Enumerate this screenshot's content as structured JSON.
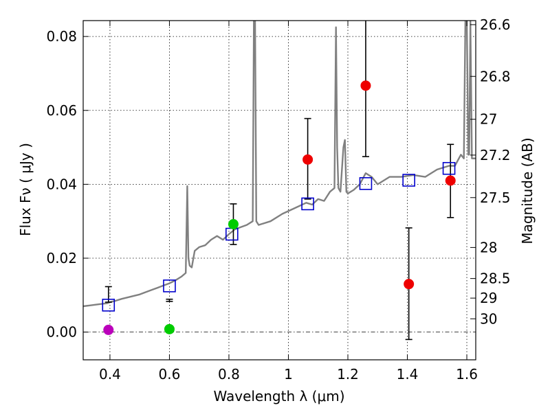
{
  "chart_data": {
    "type": "scatter",
    "xlabel": "Wavelength  λ (μm)",
    "ylabel": "Flux  Fν  ( μJy )",
    "ylabel_right": "Magnitude (AB)",
    "xlim": [
      0.31,
      1.63
    ],
    "ylim": [
      -0.0075,
      0.0843
    ],
    "x_ticks": [
      0.4,
      0.6,
      0.8,
      1.0,
      1.2,
      1.4,
      1.6
    ],
    "x_tick_labels": [
      "0.4",
      "0.6",
      "0.8",
      "1",
      "1.2",
      "1.4",
      "1.6"
    ],
    "y_ticks": [
      0.0,
      0.02,
      0.04,
      0.06,
      0.08
    ],
    "y_tick_labels": [
      "0.00",
      "0.02",
      "0.04",
      "0.06",
      "0.08"
    ],
    "right_ticks": [
      {
        "label": "26.6",
        "flux": 0.0832
      },
      {
        "label": "26.8",
        "flux": 0.0692
      },
      {
        "label": "27",
        "flux": 0.0576
      },
      {
        "label": "27.2",
        "flux": 0.0479
      },
      {
        "label": "27.5",
        "flux": 0.0364
      },
      {
        "label": "28",
        "flux": 0.0229
      },
      {
        "label": "28.5",
        "flux": 0.0145
      },
      {
        "label": "29",
        "flux": 0.0092
      },
      {
        "label": "30",
        "flux": 0.0036
      }
    ],
    "grid": true,
    "colors": {
      "magenta": "#bb00bb",
      "green": "#00cc00",
      "red": "#ee0000",
      "model": "#0000cc",
      "spectrum": "#808080"
    },
    "spectrum": {
      "name": "model spectrum",
      "x": [
        0.31,
        0.33,
        0.35,
        0.37,
        0.39,
        0.4,
        0.42,
        0.44,
        0.46,
        0.48,
        0.5,
        0.52,
        0.54,
        0.56,
        0.58,
        0.6,
        0.62,
        0.64,
        0.655,
        0.66,
        0.664,
        0.668,
        0.675,
        0.685,
        0.7,
        0.72,
        0.74,
        0.76,
        0.78,
        0.8,
        0.82,
        0.84,
        0.86,
        0.88,
        0.884,
        0.886,
        0.888,
        0.892,
        0.9,
        0.94,
        0.98,
        1.02,
        1.06,
        1.08,
        1.1,
        1.12,
        1.14,
        1.155,
        1.16,
        1.164,
        1.168,
        1.175,
        1.185,
        1.19,
        1.195,
        1.2,
        1.22,
        1.24,
        1.26,
        1.28,
        1.3,
        1.34,
        1.38,
        1.42,
        1.46,
        1.5,
        1.54,
        1.56,
        1.58,
        1.59,
        1.595,
        1.6,
        1.605,
        1.608,
        1.612,
        1.617,
        1.63
      ],
      "y": [
        0.007,
        0.0072,
        0.0074,
        0.0076,
        0.0078,
        0.0081,
        0.0085,
        0.009,
        0.0094,
        0.0098,
        0.0102,
        0.0108,
        0.0114,
        0.012,
        0.0126,
        0.0132,
        0.014,
        0.015,
        0.016,
        0.0395,
        0.02,
        0.018,
        0.0175,
        0.022,
        0.023,
        0.0235,
        0.025,
        0.026,
        0.025,
        0.0265,
        0.0278,
        0.0284,
        0.029,
        0.03,
        0.0843,
        0.0843,
        0.0843,
        0.03,
        0.029,
        0.03,
        0.032,
        0.0335,
        0.035,
        0.0345,
        0.036,
        0.0355,
        0.038,
        0.039,
        0.0825,
        0.05,
        0.039,
        0.038,
        0.05,
        0.052,
        0.038,
        0.0375,
        0.0385,
        0.04,
        0.043,
        0.042,
        0.04,
        0.042,
        0.042,
        0.0425,
        0.042,
        0.044,
        0.045,
        0.045,
        0.048,
        0.047,
        0.0843,
        0.0843,
        0.048,
        0.048,
        0.0843,
        0.047,
        0.047
      ]
    },
    "series": [
      {
        "name": "model photometry",
        "marker": "open-square",
        "color": "#0000cc",
        "points": [
          [
            0.395,
            0.0073
          ],
          [
            0.6,
            0.0125
          ],
          [
            0.81,
            0.0265
          ],
          [
            1.065,
            0.0347
          ],
          [
            1.26,
            0.0402
          ],
          [
            1.405,
            0.0411
          ],
          [
            1.54,
            0.0443
          ]
        ]
      },
      {
        "name": "observed magenta",
        "marker": "circle",
        "color": "#bb00bb",
        "points": [
          {
            "x": 0.395,
            "y": 0.0006,
            "err_low": 0.0081,
            "err_high": 0.0123
          }
        ]
      },
      {
        "name": "observed green",
        "marker": "circle",
        "color": "#00cc00",
        "points": [
          {
            "x": 0.6,
            "y": 0.0008,
            "err_low": 0.0083,
            "err_high": 0.0089
          },
          {
            "x": 0.815,
            "y": 0.0292,
            "err_low": 0.0237,
            "err_high": 0.0347
          }
        ]
      },
      {
        "name": "observed red",
        "marker": "circle",
        "color": "#ee0000",
        "points": [
          {
            "x": 1.065,
            "y": 0.0467,
            "err_low": 0.036,
            "err_high": 0.0578
          },
          {
            "x": 1.26,
            "y": 0.0667,
            "err_low": 0.0475,
            "err_high": 0.0843
          },
          {
            "x": 1.405,
            "y": 0.013,
            "err_low": -0.002,
            "err_high": 0.0282
          },
          {
            "x": 1.545,
            "y": 0.041,
            "err_low": 0.031,
            "err_high": 0.0508
          }
        ]
      }
    ]
  }
}
